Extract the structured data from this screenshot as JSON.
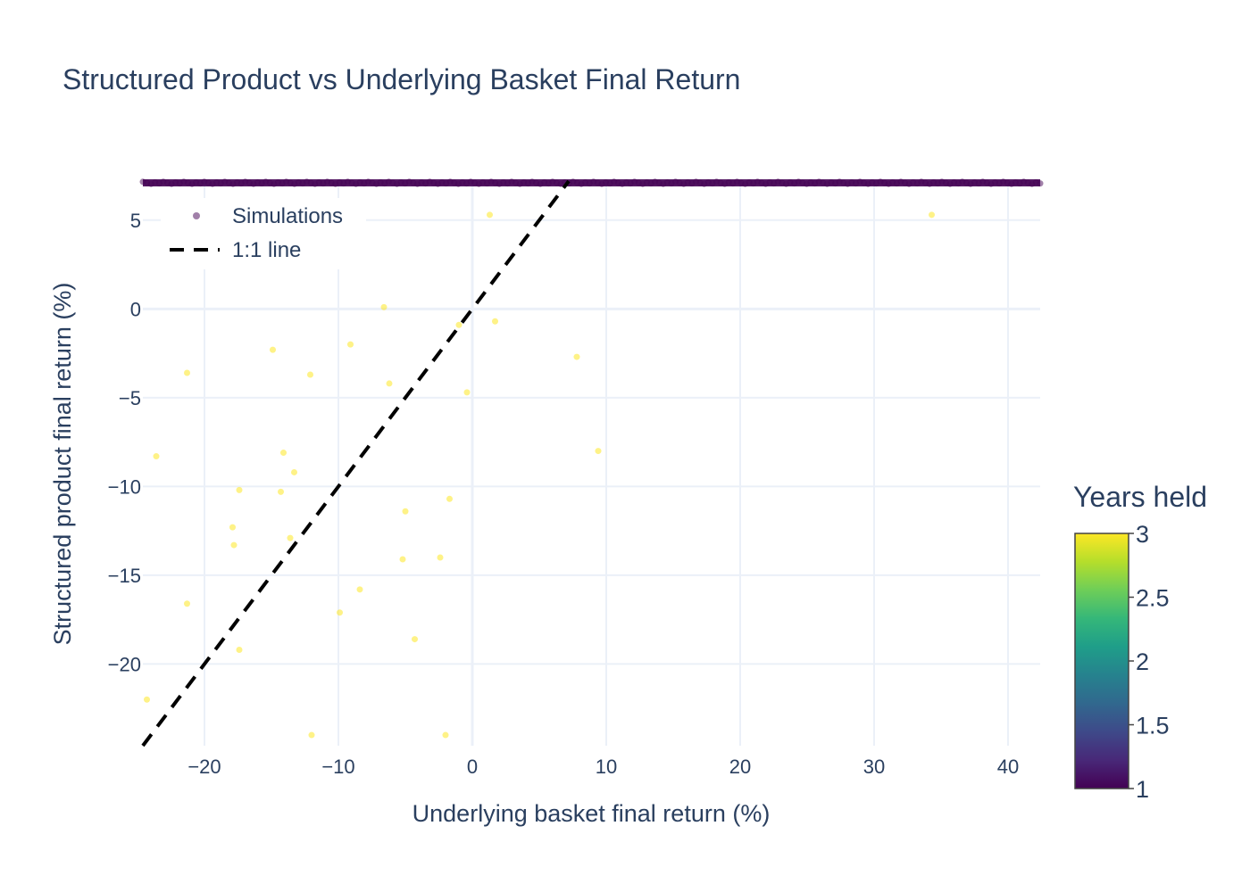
{
  "chart_data": {
    "type": "scatter",
    "title": "Structured Product vs Underlying Basket Final Return",
    "xlabel": "Underlying basket final return (%)",
    "ylabel": "Structured product final return (%)",
    "xlim": [
      -24.6,
      42.4
    ],
    "ylim": [
      -24.6,
      7.2
    ],
    "x_ticks": [
      -20,
      -10,
      0,
      10,
      20,
      30,
      40
    ],
    "y_ticks": [
      -20,
      -15,
      -10,
      -5,
      0,
      5
    ],
    "x_tick_labels": [
      "−20",
      "−10",
      "0",
      "10",
      "20",
      "30",
      "40"
    ],
    "y_tick_labels": [
      "−20",
      "−15",
      "−10",
      "−5",
      "0",
      "5"
    ],
    "grid": true,
    "legend_position": "top-left",
    "colorbar": {
      "title": "Years held",
      "colorscale": "viridis",
      "range": [
        1,
        3
      ],
      "ticks": [
        1,
        1.5,
        2,
        2.5,
        3
      ],
      "tick_labels": [
        "1",
        "1.5",
        "2",
        "2.5",
        "3"
      ]
    },
    "series": [
      {
        "name": "Simulations",
        "mode": "markers",
        "called_band": {
          "y": 7.1,
          "x_range": [
            -24.6,
            42.4
          ],
          "years_held": 1
        },
        "points": [
          {
            "x": 1.3,
            "y": 5.3,
            "years": 3
          },
          {
            "x": 34.3,
            "y": 5.3,
            "years": 3
          },
          {
            "x": -6.6,
            "y": 0.1,
            "years": 3
          },
          {
            "x": -1.0,
            "y": -0.9,
            "years": 3
          },
          {
            "x": 1.7,
            "y": -0.7,
            "years": 3
          },
          {
            "x": -9.1,
            "y": -2.0,
            "years": 3
          },
          {
            "x": -14.9,
            "y": -2.3,
            "years": 3
          },
          {
            "x": -21.3,
            "y": -3.6,
            "years": 3
          },
          {
            "x": -12.1,
            "y": -3.7,
            "years": 3
          },
          {
            "x": -6.2,
            "y": -4.2,
            "years": 3
          },
          {
            "x": 7.8,
            "y": -2.7,
            "years": 3
          },
          {
            "x": -0.4,
            "y": -4.7,
            "years": 3
          },
          {
            "x": 9.4,
            "y": -8.0,
            "years": 3
          },
          {
            "x": -23.6,
            "y": -8.3,
            "years": 3
          },
          {
            "x": -14.1,
            "y": -8.1,
            "years": 3
          },
          {
            "x": -13.3,
            "y": -9.2,
            "years": 3
          },
          {
            "x": -17.4,
            "y": -10.2,
            "years": 3
          },
          {
            "x": -14.3,
            "y": -10.3,
            "years": 3
          },
          {
            "x": -1.7,
            "y": -10.7,
            "years": 3
          },
          {
            "x": -5.0,
            "y": -11.4,
            "years": 3
          },
          {
            "x": -17.9,
            "y": -12.3,
            "years": 3
          },
          {
            "x": -17.8,
            "y": -13.3,
            "years": 3
          },
          {
            "x": -13.6,
            "y": -12.9,
            "years": 3
          },
          {
            "x": -5.2,
            "y": -14.1,
            "years": 3
          },
          {
            "x": -2.4,
            "y": -14.0,
            "years": 3
          },
          {
            "x": -8.4,
            "y": -15.8,
            "years": 3
          },
          {
            "x": -21.3,
            "y": -16.6,
            "years": 3
          },
          {
            "x": -9.9,
            "y": -17.1,
            "years": 3
          },
          {
            "x": -4.3,
            "y": -18.6,
            "years": 3
          },
          {
            "x": -17.4,
            "y": -19.2,
            "years": 3
          },
          {
            "x": -24.3,
            "y": -22.0,
            "years": 3
          },
          {
            "x": -12.0,
            "y": -24.0,
            "years": 3
          },
          {
            "x": -2.0,
            "y": -24.0,
            "years": 3
          }
        ]
      },
      {
        "name": "1:1 line",
        "mode": "lines",
        "dash": "dash",
        "color": "#000000",
        "x": [
          -24.6,
          7.2
        ],
        "y": [
          -24.6,
          7.2
        ]
      }
    ]
  }
}
